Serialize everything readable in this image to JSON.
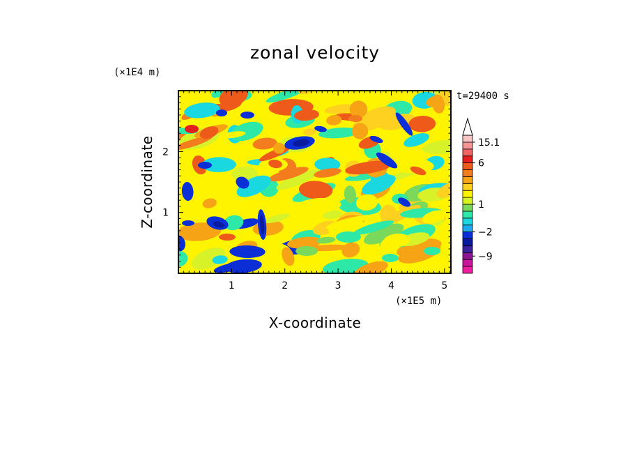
{
  "chart_data": {
    "type": "heatmap",
    "title": "zonal velocity",
    "xlabel": "X-coordinate",
    "ylabel": "Z-coordinate",
    "x_unit": "(×1E5 m)",
    "y_unit": "(×1E4 m)",
    "time_label": "t=29400 s",
    "x_range": [
      0,
      5.12
    ],
    "y_range": [
      0,
      3.0
    ],
    "x_ticks": [
      1,
      2,
      3,
      4,
      5
    ],
    "x_tick_labels": [
      "1",
      "2",
      "3",
      "4",
      "5"
    ],
    "y_ticks": [
      1,
      2
    ],
    "y_tick_labels": [
      "1",
      "2"
    ],
    "colorbar": {
      "labels": [
        {
          "value": 15.1,
          "text": "15.1"
        },
        {
          "value": 6,
          "text": "6"
        },
        {
          "value": 1,
          "text": "1"
        },
        {
          "value": -2,
          "text": "−2"
        },
        {
          "value": -9,
          "text": "−9"
        }
      ],
      "levels": [
        {
          "color": "#ee1ea0"
        },
        {
          "color": "#c8169b"
        },
        {
          "color": "#8a1590"
        },
        {
          "color": "#3b21a0"
        },
        {
          "color": "#0a1a9e"
        },
        {
          "color": "#0a2fd6"
        },
        {
          "color": "#1fa9ee"
        },
        {
          "color": "#1ad8e0"
        },
        {
          "color": "#2ee8a8"
        },
        {
          "color": "#7ad95a"
        },
        {
          "color": "#d8f22a"
        },
        {
          "color": "#fef400"
        },
        {
          "color": "#fed020"
        },
        {
          "color": "#f7a316"
        },
        {
          "color": "#f37d1e"
        },
        {
          "color": "#ee5a1a"
        },
        {
          "color": "#e41e1e"
        },
        {
          "color": "#f26464"
        },
        {
          "color": "#f59595"
        },
        {
          "color": "#f8c5c5"
        },
        {
          "color": "#ffffff"
        }
      ]
    }
  }
}
